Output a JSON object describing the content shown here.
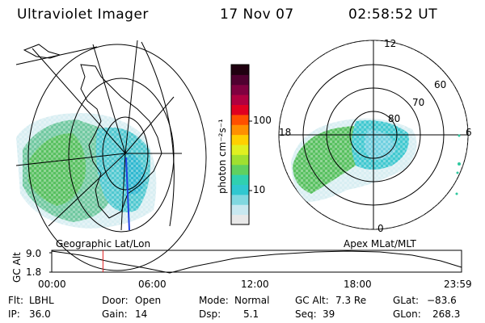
{
  "header": {
    "title": "Ultraviolet Imager",
    "date": "17 Nov 07",
    "time": "02:58:52 UT"
  },
  "left_map": {
    "label": "Geographic Lat/Lon"
  },
  "right_map": {
    "label": "Apex MLat/MLT",
    "lat_labels": [
      "80",
      "70",
      "60"
    ],
    "mlt_labels": {
      "top": "12",
      "left": "18",
      "right": "6",
      "bottom": "0"
    }
  },
  "colorbar": {
    "unit_label": "photon cm⁻²s⁻¹",
    "ticks": [
      "100",
      "10"
    ],
    "colors": [
      "#e8e8e8",
      "#c8e8f0",
      "#80d8e0",
      "#30c8d0",
      "#30d0b0",
      "#60d060",
      "#a0e030",
      "#e0f020",
      "#ffd000",
      "#ff9000",
      "#ff5000",
      "#e00020",
      "#b00040",
      "#800040",
      "#500030",
      "#200010"
    ]
  },
  "altitude_plot": {
    "ylabel": "GC Alt",
    "y_ticks": [
      "9.0",
      "1.8"
    ],
    "x_ticks": [
      "00:00",
      "06:00",
      "12:00",
      "18:00",
      "23:59"
    ],
    "current_time_fraction": 0.125
  },
  "info": {
    "flt_label": "Flt:",
    "flt_value": "LBHL",
    "ip_label": "IP:",
    "ip_value": "36.0",
    "door_label": "Door:",
    "door_value": "Open",
    "gain_label": "Gain:",
    "gain_value": "14",
    "mode_label": "Mode:",
    "mode_value": "Normal",
    "dsp_label": "Dsp:",
    "dsp_value": "5.1",
    "gcalt_label": "GC Alt:",
    "gcalt_value": "7.3 Re",
    "seq_label": "Seq:",
    "seq_value": "39",
    "glat_label": "GLat:",
    "glat_value": "−83.6",
    "glon_label": "GLon:",
    "glon_value": "268.3"
  }
}
